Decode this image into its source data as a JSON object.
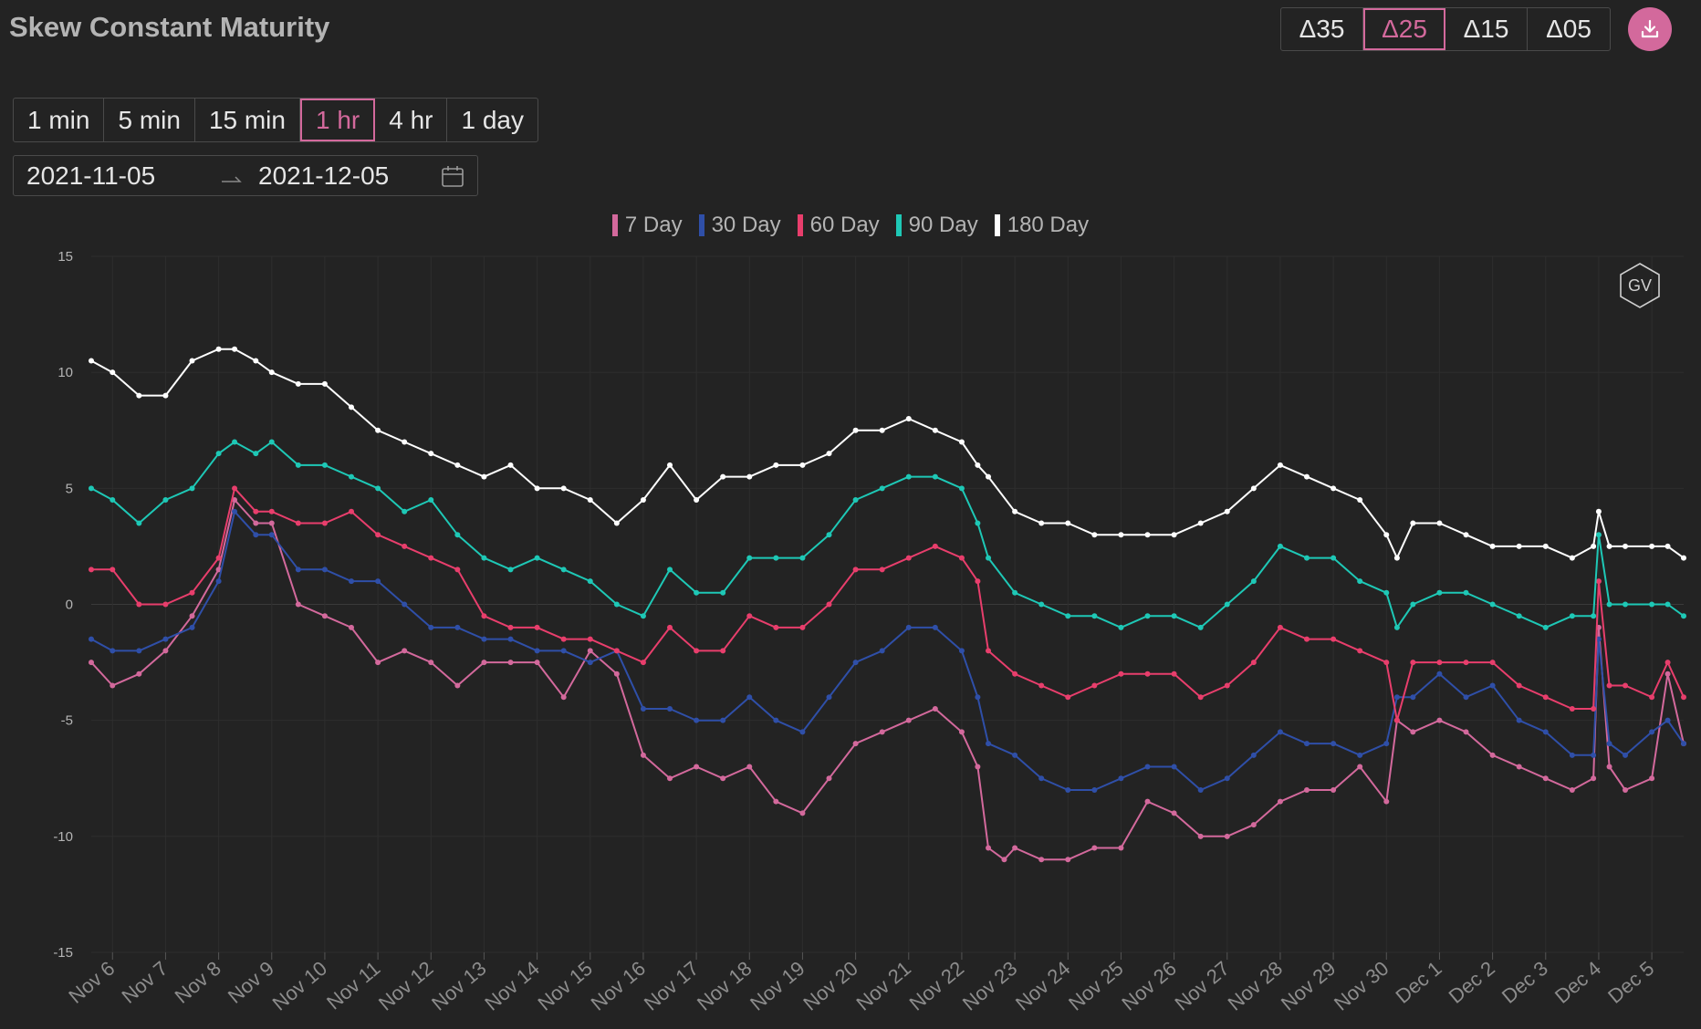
{
  "title": "Skew Constant Maturity",
  "delta_buttons": [
    {
      "label": "Δ35",
      "active": false
    },
    {
      "label": "Δ25",
      "active": true
    },
    {
      "label": "Δ15",
      "active": false
    },
    {
      "label": "Δ05",
      "active": false
    }
  ],
  "download_icon": "download-icon",
  "intervals": [
    {
      "label": "1 min",
      "active": false
    },
    {
      "label": "5 min",
      "active": false
    },
    {
      "label": "15 min",
      "active": false
    },
    {
      "label": "1 hr",
      "active": true
    },
    {
      "label": "4 hr",
      "active": false
    },
    {
      "label": "1 day",
      "active": false
    }
  ],
  "date_range": {
    "start": "2021-11-05",
    "end": "2021-12-05",
    "separator_icon": "arrow-icon",
    "calendar_icon": "calendar-icon"
  },
  "watermark": "GV",
  "colors": {
    "7 Day": "#d3699c",
    "30 Day": "#2f4fa8",
    "60 Day": "#e83e6c",
    "90 Day": "#1ec8b6",
    "180 Day": "#ffffff",
    "accent": "#d3699c"
  },
  "chart_data": {
    "type": "line",
    "title": "",
    "xlabel": "",
    "ylabel": "",
    "ylim": [
      -15,
      15
    ],
    "yticks": [
      15,
      10,
      5,
      0,
      -5,
      -10,
      -15
    ],
    "xlim": [
      5.6,
      35.6
    ],
    "xticks": [
      {
        "x": 6,
        "label": "Nov 6"
      },
      {
        "x": 7,
        "label": "Nov 7"
      },
      {
        "x": 8,
        "label": "Nov 8"
      },
      {
        "x": 9,
        "label": "Nov 9"
      },
      {
        "x": 10,
        "label": "Nov 10"
      },
      {
        "x": 11,
        "label": "Nov 11"
      },
      {
        "x": 12,
        "label": "Nov 12"
      },
      {
        "x": 13,
        "label": "Nov 13"
      },
      {
        "x": 14,
        "label": "Nov 14"
      },
      {
        "x": 15,
        "label": "Nov 15"
      },
      {
        "x": 16,
        "label": "Nov 16"
      },
      {
        "x": 17,
        "label": "Nov 17"
      },
      {
        "x": 18,
        "label": "Nov 18"
      },
      {
        "x": 19,
        "label": "Nov 19"
      },
      {
        "x": 20,
        "label": "Nov 20"
      },
      {
        "x": 21,
        "label": "Nov 21"
      },
      {
        "x": 22,
        "label": "Nov 22"
      },
      {
        "x": 23,
        "label": "Nov 23"
      },
      {
        "x": 24,
        "label": "Nov 24"
      },
      {
        "x": 25,
        "label": "Nov 25"
      },
      {
        "x": 26,
        "label": "Nov 26"
      },
      {
        "x": 27,
        "label": "Nov 27"
      },
      {
        "x": 28,
        "label": "Nov 28"
      },
      {
        "x": 29,
        "label": "Nov 29"
      },
      {
        "x": 30,
        "label": "Nov 30"
      },
      {
        "x": 31,
        "label": "Dec 1"
      },
      {
        "x": 32,
        "label": "Dec 2"
      },
      {
        "x": 33,
        "label": "Dec 3"
      },
      {
        "x": 34,
        "label": "Dec 4"
      },
      {
        "x": 35,
        "label": "Dec 5"
      }
    ],
    "grid": true,
    "legend_position": "top-center",
    "series": [
      {
        "name": "7 Day",
        "color": "#d3699c",
        "x": [
          5.6,
          6.0,
          6.5,
          7.0,
          7.5,
          8.0,
          8.3,
          8.7,
          9.0,
          9.5,
          10.0,
          10.5,
          11.0,
          11.5,
          12.0,
          12.5,
          13.0,
          13.5,
          14.0,
          14.5,
          15.0,
          15.5,
          16.0,
          16.5,
          17.0,
          17.5,
          18.0,
          18.5,
          19.0,
          19.5,
          20.0,
          20.5,
          21.0,
          21.5,
          22.0,
          22.3,
          22.5,
          22.8,
          23.0,
          23.5,
          24.0,
          24.5,
          25.0,
          25.5,
          26.0,
          26.5,
          27.0,
          27.5,
          28.0,
          28.5,
          29.0,
          29.5,
          30.0,
          30.2,
          30.5,
          31.0,
          31.5,
          32.0,
          32.5,
          33.0,
          33.5,
          33.9,
          34.0,
          34.2,
          34.5,
          35.0,
          35.3,
          35.6
        ],
        "y": [
          -2.5,
          -3.5,
          -3.0,
          -2.0,
          -0.5,
          1.5,
          4.5,
          3.5,
          3.5,
          0,
          -0.5,
          -1.0,
          -2.5,
          -2.0,
          -2.5,
          -3.5,
          -2.5,
          -2.5,
          -2.5,
          -4.0,
          -2.0,
          -3.0,
          -6.5,
          -7.5,
          -7.0,
          -7.5,
          -7.0,
          -8.5,
          -9.0,
          -7.5,
          -6.0,
          -5.5,
          -5.0,
          -4.5,
          -5.5,
          -7.0,
          -10.5,
          -11.0,
          -10.5,
          -11.0,
          -11.0,
          -10.5,
          -10.5,
          -8.5,
          -9.0,
          -10.0,
          -10.0,
          -9.5,
          -8.5,
          -8.0,
          -8.0,
          -7.0,
          -8.5,
          -5.0,
          -5.5,
          -5.0,
          -5.5,
          -6.5,
          -7.0,
          -7.5,
          -8.0,
          -7.5,
          -1.0,
          -7.0,
          -8.0,
          -7.5,
          -3.0,
          -6.0
        ]
      },
      {
        "name": "30 Day",
        "color": "#2f4fa8",
        "x": [
          5.6,
          6.0,
          6.5,
          7.0,
          7.5,
          8.0,
          8.3,
          8.7,
          9.0,
          9.5,
          10.0,
          10.5,
          11.0,
          11.5,
          12.0,
          12.5,
          13.0,
          13.5,
          14.0,
          14.5,
          15.0,
          15.5,
          16.0,
          16.5,
          17.0,
          17.5,
          18.0,
          18.5,
          19.0,
          19.5,
          20.0,
          20.5,
          21.0,
          21.5,
          22.0,
          22.3,
          22.5,
          23.0,
          23.5,
          24.0,
          24.5,
          25.0,
          25.5,
          26.0,
          26.5,
          27.0,
          27.5,
          28.0,
          28.5,
          29.0,
          29.5,
          30.0,
          30.2,
          30.5,
          31.0,
          31.5,
          32.0,
          32.5,
          33.0,
          33.5,
          33.9,
          34.0,
          34.2,
          34.5,
          35.0,
          35.3,
          35.6
        ],
        "y": [
          -1.5,
          -2.0,
          -2.0,
          -1.5,
          -1.0,
          1.0,
          4.0,
          3.0,
          3.0,
          1.5,
          1.5,
          1.0,
          1.0,
          0,
          -1.0,
          -1.0,
          -1.5,
          -1.5,
          -2.0,
          -2.0,
          -2.5,
          -2.0,
          -4.5,
          -4.5,
          -5.0,
          -5.0,
          -4.0,
          -5.0,
          -5.5,
          -4.0,
          -2.5,
          -2.0,
          -1.0,
          -1.0,
          -2.0,
          -4.0,
          -6.0,
          -6.5,
          -7.5,
          -8.0,
          -8.0,
          -7.5,
          -7.0,
          -7.0,
          -8.0,
          -7.5,
          -6.5,
          -5.5,
          -6.0,
          -6.0,
          -6.5,
          -6.0,
          -4.0,
          -4.0,
          -3.0,
          -4.0,
          -3.5,
          -5.0,
          -5.5,
          -6.5,
          -6.5,
          -1.5,
          -6.0,
          -6.5,
          -5.5,
          -5.0,
          -6.0
        ]
      },
      {
        "name": "60 Day",
        "color": "#e83e6c",
        "x": [
          5.6,
          6.0,
          6.5,
          7.0,
          7.5,
          8.0,
          8.3,
          8.7,
          9.0,
          9.5,
          10.0,
          10.5,
          11.0,
          11.5,
          12.0,
          12.5,
          13.0,
          13.5,
          14.0,
          14.5,
          15.0,
          15.5,
          16.0,
          16.5,
          17.0,
          17.5,
          18.0,
          18.5,
          19.0,
          19.5,
          20.0,
          20.5,
          21.0,
          21.5,
          22.0,
          22.3,
          22.5,
          23.0,
          23.5,
          24.0,
          24.5,
          25.0,
          25.5,
          26.0,
          26.5,
          27.0,
          27.5,
          28.0,
          28.5,
          29.0,
          29.5,
          30.0,
          30.2,
          30.5,
          31.0,
          31.5,
          32.0,
          32.5,
          33.0,
          33.5,
          33.9,
          34.0,
          34.2,
          34.5,
          35.0,
          35.3,
          35.6
        ],
        "y": [
          1.5,
          1.5,
          0,
          0,
          0.5,
          2.0,
          5.0,
          4.0,
          4.0,
          3.5,
          3.5,
          4.0,
          3.0,
          2.5,
          2.0,
          1.5,
          -0.5,
          -1.0,
          -1.0,
          -1.5,
          -1.5,
          -2.0,
          -2.5,
          -1.0,
          -2.0,
          -2.0,
          -0.5,
          -1.0,
          -1.0,
          0,
          1.5,
          1.5,
          2.0,
          2.5,
          2.0,
          1.0,
          -2.0,
          -3.0,
          -3.5,
          -4.0,
          -3.5,
          -3.0,
          -3.0,
          -3.0,
          -4.0,
          -3.5,
          -2.5,
          -1.0,
          -1.5,
          -1.5,
          -2.0,
          -2.5,
          -5.0,
          -2.5,
          -2.5,
          -2.5,
          -2.5,
          -3.5,
          -4.0,
          -4.5,
          -4.5,
          1.0,
          -3.5,
          -3.5,
          -4.0,
          -2.5,
          -4.0
        ]
      },
      {
        "name": "90 Day",
        "color": "#1ec8b6",
        "x": [
          5.6,
          6.0,
          6.5,
          7.0,
          7.5,
          8.0,
          8.3,
          8.7,
          9.0,
          9.5,
          10.0,
          10.5,
          11.0,
          11.5,
          12.0,
          12.5,
          13.0,
          13.5,
          14.0,
          14.5,
          15.0,
          15.5,
          16.0,
          16.5,
          17.0,
          17.5,
          18.0,
          18.5,
          19.0,
          19.5,
          20.0,
          20.5,
          21.0,
          21.5,
          22.0,
          22.3,
          22.5,
          23.0,
          23.5,
          24.0,
          24.5,
          25.0,
          25.5,
          26.0,
          26.5,
          27.0,
          27.5,
          28.0,
          28.5,
          29.0,
          29.5,
          30.0,
          30.2,
          30.5,
          31.0,
          31.5,
          32.0,
          32.5,
          33.0,
          33.5,
          33.9,
          34.0,
          34.2,
          34.5,
          35.0,
          35.3,
          35.6
        ],
        "y": [
          5.0,
          4.5,
          3.5,
          4.5,
          5.0,
          6.5,
          7.0,
          6.5,
          7.0,
          6.0,
          6.0,
          5.5,
          5.0,
          4.0,
          4.5,
          3.0,
          2.0,
          1.5,
          2.0,
          1.5,
          1.0,
          0,
          -0.5,
          1.5,
          0.5,
          0.5,
          2.0,
          2.0,
          2.0,
          3.0,
          4.5,
          5.0,
          5.5,
          5.5,
          5.0,
          3.5,
          2.0,
          0.5,
          0,
          -0.5,
          -0.5,
          -1.0,
          -0.5,
          -0.5,
          -1.0,
          0,
          1.0,
          2.5,
          2.0,
          2.0,
          1.0,
          0.5,
          -1.0,
          0,
          0.5,
          0.5,
          0,
          -0.5,
          -1.0,
          -0.5,
          -0.5,
          3.0,
          0,
          0,
          0,
          0,
          -0.5
        ]
      },
      {
        "name": "180 Day",
        "color": "#ffffff",
        "x": [
          5.6,
          6.0,
          6.5,
          7.0,
          7.5,
          8.0,
          8.3,
          8.7,
          9.0,
          9.5,
          10.0,
          10.5,
          11.0,
          11.5,
          12.0,
          12.5,
          13.0,
          13.5,
          14.0,
          14.5,
          15.0,
          15.5,
          16.0,
          16.5,
          17.0,
          17.5,
          18.0,
          18.5,
          19.0,
          19.5,
          20.0,
          20.5,
          21.0,
          21.5,
          22.0,
          22.3,
          22.5,
          23.0,
          23.5,
          24.0,
          24.5,
          25.0,
          25.5,
          26.0,
          26.5,
          27.0,
          27.5,
          28.0,
          28.5,
          29.0,
          29.5,
          30.0,
          30.2,
          30.5,
          31.0,
          31.5,
          32.0,
          32.5,
          33.0,
          33.5,
          33.9,
          34.0,
          34.2,
          34.5,
          35.0,
          35.3,
          35.6
        ],
        "y": [
          10.5,
          10.0,
          9.0,
          9.0,
          10.5,
          11.0,
          11.0,
          10.5,
          10.0,
          9.5,
          9.5,
          8.5,
          7.5,
          7.0,
          6.5,
          6.0,
          5.5,
          6.0,
          5.0,
          5.0,
          4.5,
          3.5,
          4.5,
          6.0,
          4.5,
          5.5,
          5.5,
          6.0,
          6.0,
          6.5,
          7.5,
          7.5,
          8.0,
          7.5,
          7.0,
          6.0,
          5.5,
          4.0,
          3.5,
          3.5,
          3.0,
          3.0,
          3.0,
          3.0,
          3.5,
          4.0,
          5.0,
          6.0,
          5.5,
          5.0,
          4.5,
          3.0,
          2.0,
          3.5,
          3.5,
          3.0,
          2.5,
          2.5,
          2.5,
          2.0,
          2.5,
          4.0,
          2.5,
          2.5,
          2.5,
          2.5,
          2.0
        ]
      }
    ]
  }
}
